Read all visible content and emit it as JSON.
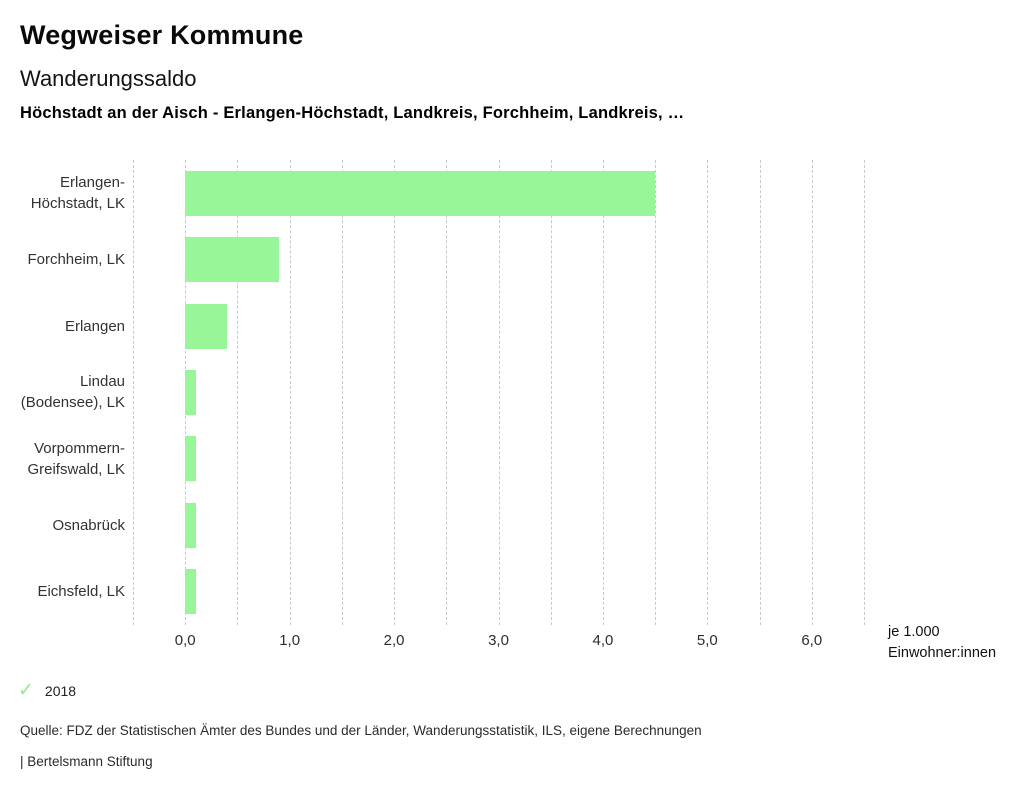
{
  "header": {
    "app_title": "Wegweiser Kommune",
    "chart_title": "Wanderungssaldo",
    "compare_line": "Höchstadt an der Aisch - Erlangen-Höchstadt, Landkreis, Forchheim, Landkreis, …"
  },
  "chart_data": {
    "type": "bar",
    "orientation": "horizontal",
    "title": "Wanderungssaldo",
    "categories": [
      "Erlangen-Höchstadt, LK",
      "Forchheim, LK",
      "Erlangen",
      "Lindau (Bodensee), LK",
      "Vorpommern-Greifswald, LK",
      "Osnabrück",
      "Eichsfeld, LK"
    ],
    "category_label_lines": [
      [
        "Erlangen-",
        "Höchstadt, LK"
      ],
      [
        "Forchheim, LK"
      ],
      [
        "Erlangen"
      ],
      [
        "Lindau",
        "(Bodensee), LK"
      ],
      [
        "Vorpommern-",
        "Greifswald, LK"
      ],
      [
        "Osnabrück"
      ],
      [
        "Eichsfeld, LK"
      ]
    ],
    "series": [
      {
        "name": "2018",
        "values": [
          4.5,
          0.9,
          0.4,
          0.1,
          0.1,
          0.1,
          0.1
        ]
      }
    ],
    "xlim": [
      -0.5,
      6.5
    ],
    "x_ticks": [
      0,
      1,
      2,
      3,
      4,
      5,
      6
    ],
    "x_tick_labels": [
      "0,0",
      "1,0",
      "2,0",
      "3,0",
      "4,0",
      "5,0",
      "6,0"
    ],
    "gridline_step": 0.5,
    "grid": true,
    "bar_color": "#98f698",
    "gridline_color": "#c9c9c9",
    "unit_label_lines": [
      "je 1.000",
      "Einwohner:innen"
    ],
    "legend_position": "bottom-left"
  },
  "legend": {
    "check_icon": "✓",
    "check_color": "#94e894",
    "year": "2018"
  },
  "footer": {
    "source": "Quelle: FDZ der Statistischen Ämter des Bundes und der Länder, Wanderungsstatistik, ILS, eigene Berechnungen",
    "branding": "| Bertelsmann Stiftung"
  }
}
